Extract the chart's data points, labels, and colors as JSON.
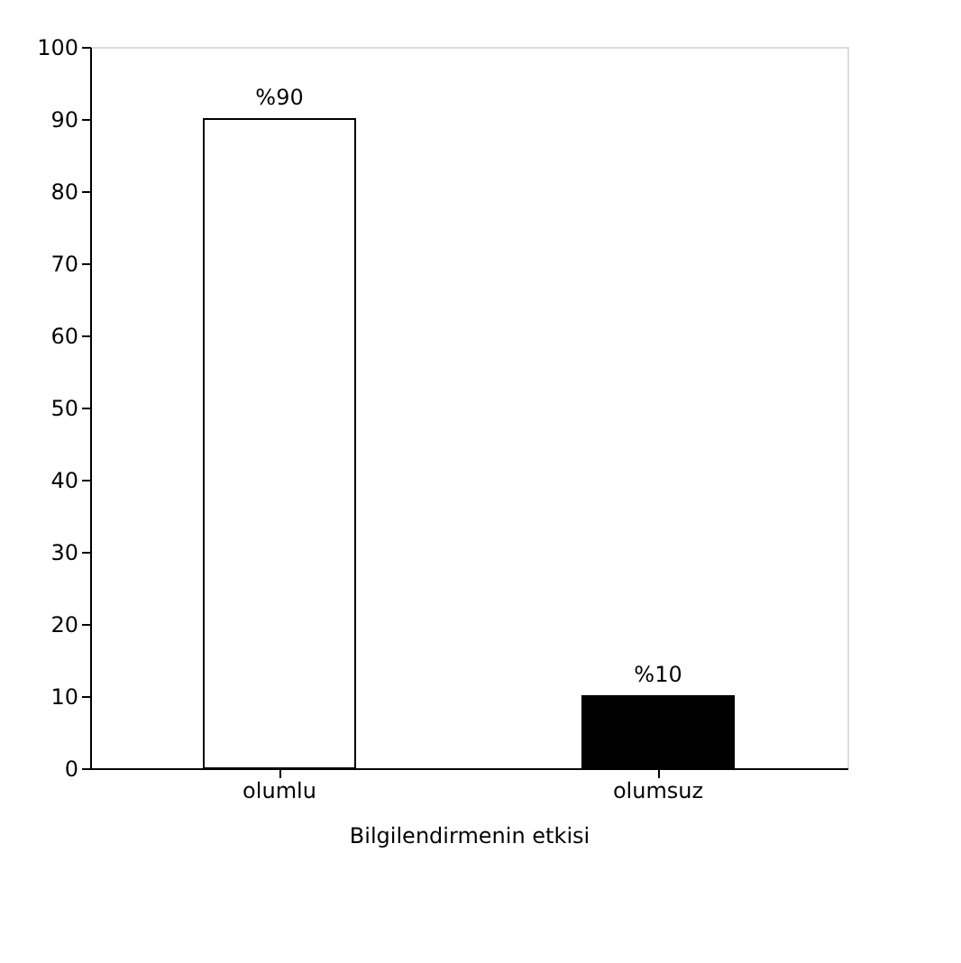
{
  "chart_data": {
    "type": "bar",
    "xlabel": "Bilgilendirmenin etkisi",
    "categories": [
      "olumlu",
      "olumsuz"
    ],
    "values": [
      90,
      10
    ],
    "colors": [
      "#ffffff",
      "#000000"
    ],
    "value_labels": [
      "%90",
      "%10"
    ],
    "ylim": [
      0,
      100
    ],
    "yticks": [
      0,
      10,
      20,
      30,
      40,
      50,
      60,
      70,
      80,
      90,
      100
    ],
    "grid": false
  }
}
